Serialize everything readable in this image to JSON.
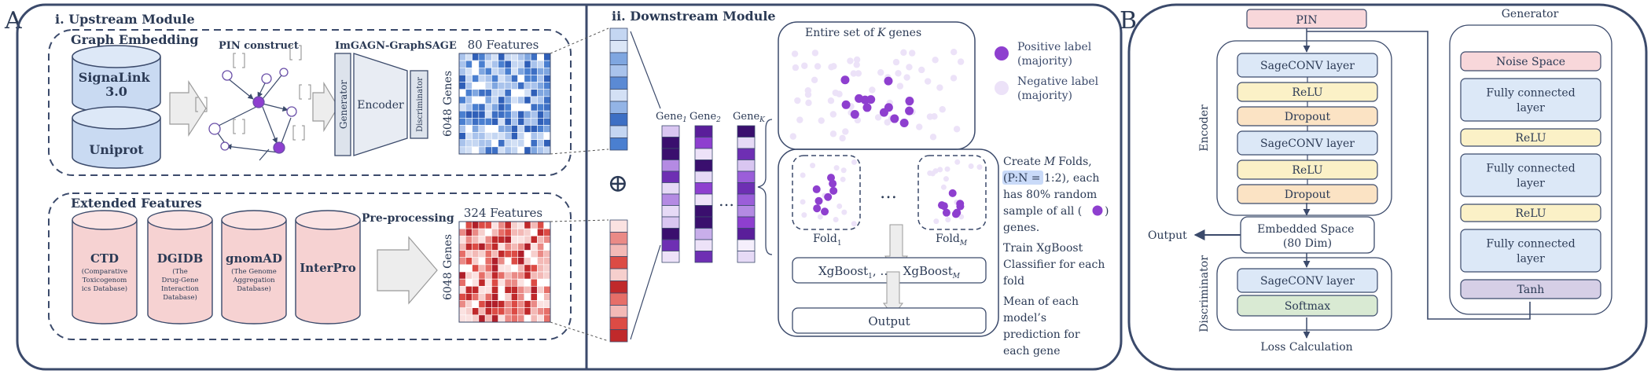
{
  "panelA": {
    "letter": "A",
    "upstream_title": "i. Upstream Module",
    "graph_embedding": {
      "title": "Graph Embedding",
      "db1": [
        "SignaLink",
        "3.0"
      ],
      "db2": "Uniprot",
      "pin_construct": "PIN construct",
      "gagn_title": "ImGAGN-GraphSAGE",
      "generator": "Generator",
      "encoder": "Encoder",
      "discriminator": "Discriminator",
      "features": "80 Features",
      "genes": "6048 Genes"
    },
    "extended": {
      "title": "Extended Features",
      "preprocessing": "Pre-processing",
      "features": "324 Features",
      "genes": "6048 Genes",
      "dbs": [
        {
          "name": "CTD",
          "sub": [
            "(Comparative",
            "Toxicogenom",
            "ics Database)"
          ]
        },
        {
          "name": "DGIDB",
          "sub": [
            "(The",
            "Drug-Gene",
            "Interaction",
            "Database)"
          ]
        },
        {
          "name": "gnomAD",
          "sub": [
            "(The Genome",
            "Aggregation",
            "Database)"
          ]
        },
        {
          "name": "InterPro",
          "sub": []
        }
      ]
    },
    "downstream_title": "ii. Downstream Module",
    "oplus": "⊕",
    "gene_labels": [
      {
        "name": "Gene",
        "sub": "1"
      },
      {
        "name": "Gene",
        "sub": "2"
      },
      {
        "name": "Gene",
        "sub": "K"
      }
    ],
    "ellipsis": "…",
    "gene_set_title_pre": "Entire set of",
    "gene_set_title_k": "K",
    "gene_set_title_post": "genes",
    "legend": {
      "positive": [
        "Positive label",
        "(majority)"
      ],
      "negative": [
        "Negative label",
        "(majority)"
      ]
    },
    "fold1": {
      "name": "Fold",
      "sub": "1"
    },
    "foldM": {
      "name": "Fold",
      "sub": "M"
    },
    "fold_ellipsis": "…",
    "xgboost": {
      "pre": "XgBoost",
      "sub1": "1",
      "mid": ", … , XgBoost",
      "subM": "M"
    },
    "output": "Output",
    "notes": {
      "create_pre": "Create",
      "create_m": "M",
      "create_post": "Folds,",
      "ratio": "(P:N = 1:2), each",
      "sample": [
        "has 80% random",
        "sample of all ("
      ],
      "sample_end": ")",
      "genes": "genes.",
      "train": [
        "Train XgBoost",
        "Classifier for each",
        "fold"
      ],
      "mean": [
        "Mean of each",
        "model’s",
        "prediction for",
        "each gene"
      ]
    }
  },
  "panelB": {
    "letter": "B",
    "pin": "PIN",
    "encoder_label": "Encoder",
    "encoder_layers": [
      "SageCONV layer",
      "ReLU",
      "Dropout",
      "SageCONV layer",
      "ReLU",
      "Dropout"
    ],
    "embedded": [
      "Embedded Space",
      "(80 Dim)"
    ],
    "output": "Output",
    "discriminator_label": "Discriminator",
    "disc_layers": [
      "SageCONV layer",
      "Softmax"
    ],
    "loss": "Loss Calculation",
    "generator_label": "Generator",
    "gen_layers": [
      {
        "label": [
          "Noise Space"
        ],
        "kind": "noise"
      },
      {
        "label": [
          "Fully connected",
          "layer"
        ],
        "kind": "fc"
      },
      {
        "label": [
          "ReLU"
        ],
        "kind": "relu"
      },
      {
        "label": [
          "Fully connected",
          "layer"
        ],
        "kind": "fc"
      },
      {
        "label": [
          "ReLU"
        ],
        "kind": "relu"
      },
      {
        "label": [
          "Fully connected",
          "layer"
        ],
        "kind": "fc"
      },
      {
        "label": [
          "Tanh"
        ],
        "kind": "tanh"
      }
    ]
  },
  "colors": {
    "frame": "#3b4a6b",
    "blue_box": "#dce8f7",
    "relu": "#fbf1c7",
    "dropout": "#fbe3c4",
    "pin": "#f8d7da",
    "softmax": "#d9ead3",
    "tanh": "#d6cfe6",
    "db_blue": "#c9daf2",
    "db_red": "#f6d2d2",
    "purple": "#8e3fcf",
    "lavender": "#e9dcf7"
  }
}
